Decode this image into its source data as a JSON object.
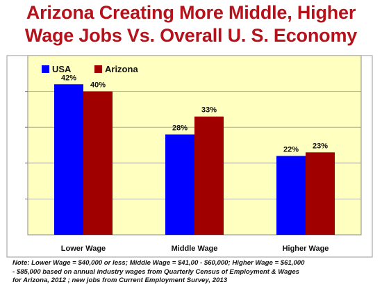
{
  "title_line1": "Arizona Creating More Middle, Higher",
  "title_line2": "Wage Jobs Vs. Overall U. S. Economy",
  "note_line1": "Note: Lower Wage = $40,000 or less; Middle Wage = $41,00 - $60,000; Higher Wage = $61,000",
  "note_line2": "- $85,000 based on annual industry wages from Quarterly Census of Employment & Wages",
  "note_line3": "for Arizona, 2012 ; new jobs from Current Employment Survey, 2013",
  "chart_data": {
    "type": "bar",
    "categories": [
      "Lower Wage",
      "Middle Wage",
      "Higher Wage"
    ],
    "series": [
      {
        "name": "USA",
        "values": [
          42,
          28,
          22
        ],
        "labels": [
          "42%",
          "28%",
          "22%"
        ],
        "color": "#0000ff"
      },
      {
        "name": "Arizona",
        "values": [
          40,
          33,
          23
        ],
        "labels": [
          "40%",
          "33%",
          "23%"
        ],
        "color": "#a00000"
      }
    ],
    "ylim": [
      0,
      50
    ],
    "grid": true,
    "legend": "top-left",
    "plot_background": "#ffffc0"
  }
}
